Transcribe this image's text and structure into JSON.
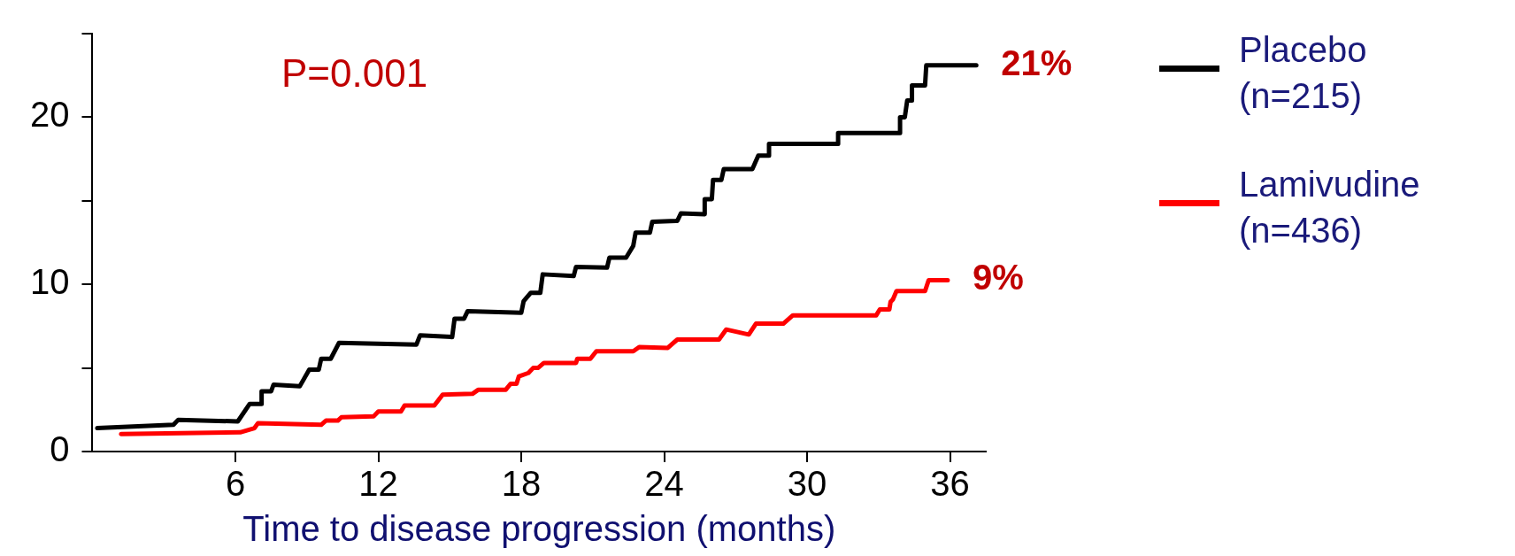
{
  "chart_data": {
    "type": "line",
    "xlabel": "Time to disease progression (months)",
    "xlim": [
      0,
      37.5
    ],
    "xticks": [
      6,
      12,
      18,
      24,
      30,
      36
    ],
    "ylim": [
      0,
      25
    ],
    "yticks": [
      0,
      {
        "value": 5,
        "label": null
      },
      10,
      {
        "value": 15,
        "label": null
      },
      20,
      {
        "value": 25,
        "label": null
      }
    ],
    "grid": false,
    "legend": "right",
    "marker": "none",
    "line_style": "solid",
    "annotations": [
      "P=0.001",
      {
        "text": "21%",
        "x": 37.1,
        "y": 23.1
      },
      {
        "text": "9%",
        "x": 35.9,
        "y": 10.3
      }
    ],
    "series": [
      {
        "name": "Placebo (n=215)",
        "color": "#000000",
        "x": [
          0.2,
          3.4,
          3.6,
          6.1,
          6.6,
          7.1,
          7.1,
          7.5,
          7.6,
          8.7,
          9.1,
          9.5,
          9.6,
          10.0,
          10.35,
          13.6,
          13.75,
          15.1,
          15.2,
          15.6,
          15.75,
          18.0,
          18.1,
          18.4,
          18.8,
          18.9,
          20.2,
          20.3,
          21.6,
          21.7,
          22.4,
          22.7,
          22.8,
          23.4,
          23.5,
          24.55,
          24.7,
          25.7,
          25.7,
          26.0,
          26.05,
          26.4,
          26.5,
          27.7,
          27.95,
          28.4,
          28.4,
          31.3,
          31.3,
          33.9,
          33.9,
          34.1,
          34.2,
          34.4,
          34.4,
          34.95,
          35.0,
          37.1
        ],
        "values": [
          1.4,
          1.6,
          1.9,
          1.8,
          2.85,
          2.85,
          3.6,
          3.6,
          4.0,
          3.9,
          4.9,
          4.9,
          5.55,
          5.55,
          6.5,
          6.4,
          6.95,
          6.85,
          7.95,
          7.95,
          8.4,
          8.3,
          9.0,
          9.5,
          9.5,
          10.6,
          10.5,
          11.05,
          11.0,
          11.6,
          11.6,
          12.3,
          13.1,
          13.1,
          13.75,
          13.8,
          14.25,
          14.2,
          15.1,
          15.1,
          16.25,
          16.25,
          16.9,
          16.9,
          17.7,
          17.7,
          18.4,
          18.4,
          19.05,
          19.05,
          20.0,
          20.0,
          21.0,
          21.0,
          21.9,
          21.9,
          23.1,
          23.1
        ]
      },
      {
        "name": "Lamivudine (n=436)",
        "color": "#ff0000",
        "x": [
          1.2,
          6.2,
          6.8,
          6.95,
          9.6,
          9.8,
          10.3,
          10.45,
          11.8,
          12.0,
          12.95,
          13.1,
          14.35,
          14.7,
          15.95,
          16.2,
          17.35,
          17.55,
          17.8,
          17.9,
          18.3,
          18.5,
          18.7,
          18.95,
          20.3,
          20.35,
          20.9,
          21.15,
          22.7,
          22.95,
          24.15,
          24.55,
          26.3,
          26.6,
          27.55,
          27.85,
          29.0,
          29.4,
          32.9,
          33.05,
          33.45,
          33.5,
          33.6,
          33.75,
          34.95,
          35.1,
          35.9
        ],
        "values": [
          1.05,
          1.15,
          1.4,
          1.7,
          1.6,
          1.85,
          1.85,
          2.05,
          2.1,
          2.4,
          2.4,
          2.75,
          2.75,
          3.4,
          3.45,
          3.7,
          3.7,
          4.05,
          4.05,
          4.5,
          4.7,
          5.0,
          5.0,
          5.3,
          5.3,
          5.55,
          5.55,
          6.0,
          6.0,
          6.25,
          6.2,
          6.7,
          6.7,
          7.3,
          7.0,
          7.65,
          7.65,
          8.15,
          8.15,
          8.5,
          8.5,
          8.95,
          9.1,
          9.6,
          9.6,
          10.25,
          10.25
        ]
      }
    ]
  }
}
